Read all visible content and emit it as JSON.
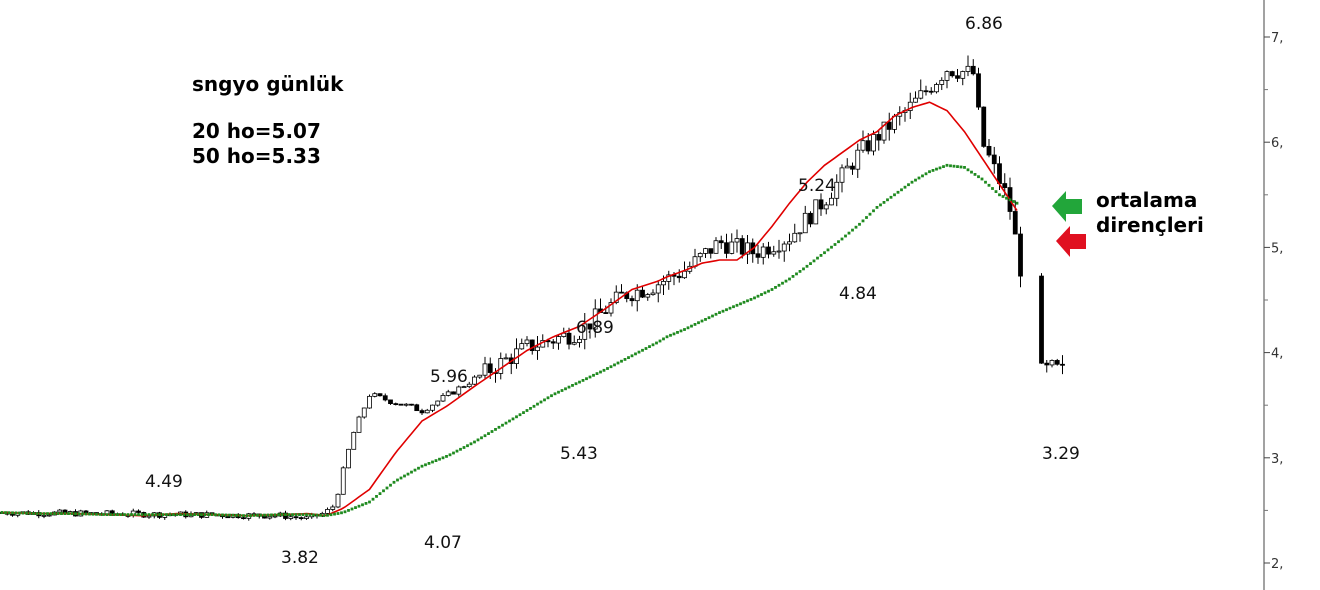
{
  "header": {
    "title": "sngyo günlük",
    "ma20_label": "20 ho=5.07",
    "ma50_label": "50 ho=5.33"
  },
  "annotations": {
    "a1": "4.49",
    "a2": "3.82",
    "a3": "4.07",
    "a4": "5.96",
    "a5": "5.43",
    "a6": "6.89",
    "a7": "5.24",
    "a8": "4.84",
    "a9": "6.86",
    "a10": "3.29"
  },
  "side_note": {
    "line1": "ortalama",
    "line2": "dirençleri"
  },
  "colors": {
    "ma20": "#e00000",
    "ma50": "#1f8a1f",
    "arrow_green": "#22a63a",
    "arrow_red": "#e01020",
    "candle": "#000000"
  },
  "chart_data": {
    "type": "line",
    "title": "",
    "xlabel": "",
    "ylabel": "",
    "ylim": [
      2.0,
      7.5
    ],
    "yticks": [
      {
        "value": 2,
        "label": "2,"
      },
      {
        "value": 3,
        "label": "3,"
      },
      {
        "value": 4,
        "label": "4,"
      },
      {
        "value": 5,
        "label": "5,"
      },
      {
        "value": 6,
        "label": "6,"
      },
      {
        "value": 7,
        "label": "7,"
      }
    ],
    "x": [
      0,
      20,
      40,
      60,
      80,
      100,
      120,
      140,
      160,
      175,
      185,
      195,
      210,
      225,
      240,
      255,
      270,
      285,
      300,
      315,
      330,
      345,
      360,
      375,
      380,
      390,
      400,
      410,
      420,
      430,
      440,
      450,
      460,
      470,
      480,
      490,
      500,
      510,
      520,
      530,
      540,
      550,
      560,
      570,
      580,
      590,
      600,
      605
    ],
    "series": [
      {
        "name": "",
        "values": [
          2.48,
          2.47,
          2.47,
          2.46,
          2.45,
          2.47,
          2.46,
          2.45,
          2.46,
          2.47,
          2.45,
          2.52,
          2.7,
          3.05,
          3.35,
          3.5,
          3.68,
          3.85,
          4.02,
          4.15,
          4.25,
          4.42,
          4.6,
          4.68,
          4.72,
          4.78,
          4.85,
          4.88,
          4.88,
          5.0,
          5.2,
          5.42,
          5.62,
          5.78,
          5.9,
          6.02,
          6.1,
          6.25,
          6.33,
          6.38,
          6.3,
          6.1,
          5.85,
          5.6,
          5.35,
          5.15,
          5.07,
          5.07
        ]
      },
      {
        "name": "",
        "values": [
          2.48,
          2.47,
          2.47,
          2.46,
          2.46,
          2.46,
          2.46,
          2.45,
          2.46,
          2.46,
          2.45,
          2.48,
          2.58,
          2.78,
          2.92,
          3.02,
          3.15,
          3.3,
          3.45,
          3.6,
          3.72,
          3.84,
          3.97,
          4.1,
          4.15,
          4.22,
          4.3,
          4.38,
          4.45,
          4.52,
          4.6,
          4.7,
          4.82,
          4.95,
          5.08,
          5.22,
          5.38,
          5.5,
          5.62,
          5.72,
          5.78,
          5.76,
          5.65,
          5.5,
          5.42,
          5.38,
          5.33,
          5.33
        ]
      }
    ],
    "candles_summary": {
      "swing_values": [
        4.49,
        3.82,
        4.07,
        5.96,
        5.43,
        6.89,
        5.24,
        4.84,
        6.86,
        3.29
      ]
    },
    "grid": false,
    "legend": "none"
  }
}
